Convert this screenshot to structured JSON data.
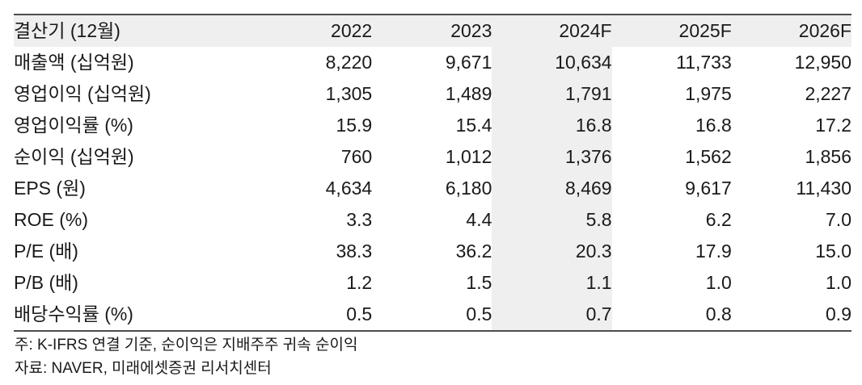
{
  "table": {
    "header": {
      "label": "결산기 (12월)",
      "columns": [
        "2022",
        "2023",
        "2024F",
        "2025F",
        "2026F"
      ]
    },
    "highlight_column": "2024F",
    "highlight_column_index": 2,
    "rows": [
      {
        "label": "매출액 (십억원)",
        "values": [
          "8,220",
          "9,671",
          "10,634",
          "11,733",
          "12,950"
        ]
      },
      {
        "label": "영업이익 (십억원)",
        "values": [
          "1,305",
          "1,489",
          "1,791",
          "1,975",
          "2,227"
        ]
      },
      {
        "label": "영업이익률 (%)",
        "values": [
          "15.9",
          "15.4",
          "16.8",
          "16.8",
          "17.2"
        ]
      },
      {
        "label": "순이익 (십억원)",
        "values": [
          "760",
          "1,012",
          "1,376",
          "1,562",
          "1,856"
        ]
      },
      {
        "label": "EPS (원)",
        "values": [
          "4,634",
          "6,180",
          "8,469",
          "9,617",
          "11,430"
        ]
      },
      {
        "label": "ROE (%)",
        "values": [
          "3.3",
          "4.4",
          "5.8",
          "6.2",
          "7.0"
        ]
      },
      {
        "label": "P/E (배)",
        "values": [
          "38.3",
          "36.2",
          "20.3",
          "17.9",
          "15.0"
        ]
      },
      {
        "label": "P/B (배)",
        "values": [
          "1.2",
          "1.5",
          "1.1",
          "1.0",
          "1.0"
        ]
      },
      {
        "label": "배당수익률 (%)",
        "values": [
          "0.5",
          "0.5",
          "0.7",
          "0.8",
          "0.9"
        ]
      }
    ],
    "notes": [
      "주: K-IFRS 연결 기준, 순이익은 지배주주 귀속 순이익",
      "자료: NAVER, 미래에셋증권 리서치센터"
    ],
    "colors": {
      "header_bg": "#efefef",
      "highlight_bg": "#efefef",
      "border": "#4d4d4d",
      "text": "#1a1a1a"
    }
  }
}
